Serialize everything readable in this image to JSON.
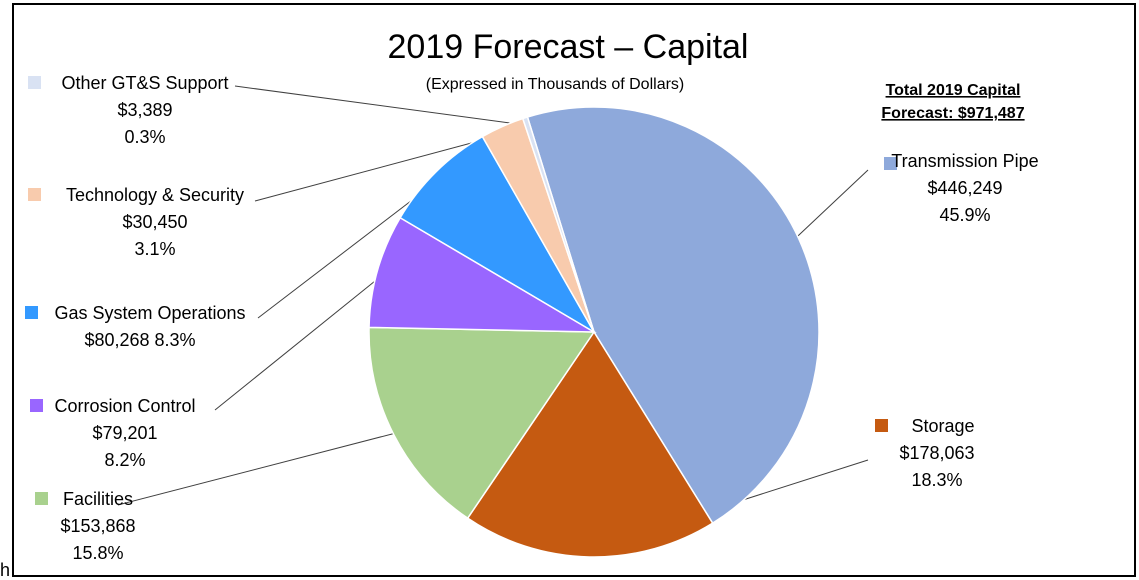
{
  "chart_data": {
    "type": "pie",
    "title": "2019 Forecast – Capital",
    "subtitle": "(Expressed in Thousands of Dollars)",
    "total_line1": "Total 2019 Capital",
    "total_line2": "Forecast: $971,487",
    "slices": [
      {
        "label": "Transmission Pipe",
        "value_text": "$446,249",
        "pct_text": "45.9%",
        "value": 446249,
        "color": "#8EA9DB"
      },
      {
        "label": "Storage",
        "value_text": "$178,063",
        "pct_text": "18.3%",
        "value": 178063,
        "color": "#C55A11"
      },
      {
        "label": "Facilities",
        "value_text": "$153,868",
        "pct_text": "15.8%",
        "value": 153868,
        "color": "#A9D18E"
      },
      {
        "label": "Corrosion Control",
        "value_text": "$79,201",
        "pct_text": "8.2%",
        "value": 79201,
        "color": "#9966FF"
      },
      {
        "label": "Gas System Operations",
        "value_text": "$80,268",
        "pct_text": "8.3%",
        "value": 80268,
        "color": "#3399FF"
      },
      {
        "label": "Technology & Security",
        "value_text": "$30,450",
        "pct_text": "3.1%",
        "value": 30450,
        "color": "#F8CBAD"
      },
      {
        "label": "Other GT&S Support",
        "value_text": "$3,389",
        "pct_text": "0.3%",
        "value": 3389,
        "color": "#D9E2F3"
      }
    ]
  },
  "stray_char": "h"
}
